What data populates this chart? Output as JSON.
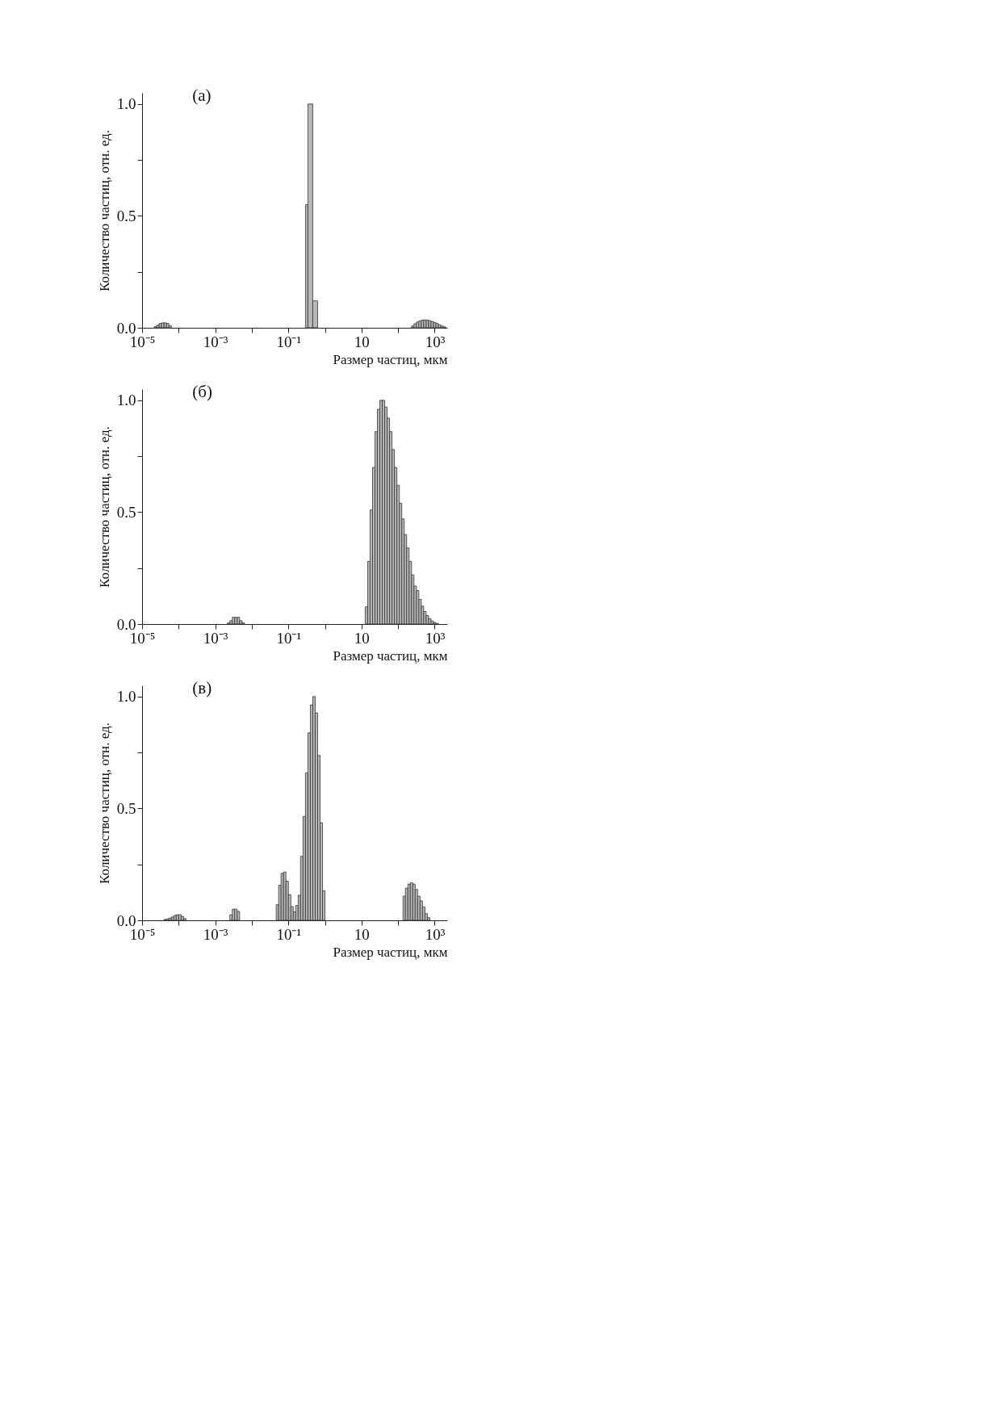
{
  "chart_data": [
    {
      "type": "histogram",
      "title": "(а)",
      "xlabel": "Размер частиц, мкм",
      "ylabel": "Количество частиц, отн. ед.",
      "log": "x",
      "color": "#b8b8b8",
      "xlim": [
        1e-05,
        2200
      ],
      "ylim": [
        0,
        1.05
      ],
      "xticks": [
        {
          "value": 1e-05,
          "label": "10⁻⁵"
        },
        {
          "value": 0.0001,
          "label": null
        },
        {
          "value": 0.001,
          "label": "10⁻³"
        },
        {
          "value": 0.01,
          "label": null
        },
        {
          "value": 0.1,
          "label": "10⁻¹"
        },
        {
          "value": 1,
          "label": null
        },
        {
          "value": 10,
          "label": "10"
        },
        {
          "value": 100,
          "label": null
        },
        {
          "value": 1000,
          "label": "10³"
        }
      ],
      "yticks": [
        {
          "value": 0,
          "label": "0.0"
        },
        {
          "value": 0.25,
          "label": null
        },
        {
          "value": 0.5,
          "label": "0.5"
        },
        {
          "value": 0.75,
          "label": null
        },
        {
          "value": 1,
          "label": "1.0"
        }
      ],
      "bins": [
        2.15e-05,
        2.51e-05,
        2.93e-05,
        3.41e-05,
        3.98e-05,
        4.64e-05,
        5.41e-05,
        6.31e-05,
        0.293,
        0.341,
        0.464,
        0.631,
        233,
        271,
        316,
        369,
        430,
        501,
        584,
        681,
        794,
        926,
        1080,
        1260,
        1470,
        1710,
        2000
      ],
      "values": [
        0.005,
        0.012,
        0.02,
        0.022,
        0.022,
        0.02,
        0.01,
        0,
        0.55,
        1.0,
        0.12,
        0,
        0.008,
        0.018,
        0.026,
        0.031,
        0.034,
        0.035,
        0.034,
        0.032,
        0.028,
        0.024,
        0.019,
        0.013,
        0.008,
        0.004
      ]
    },
    {
      "type": "histogram",
      "title": "(б)",
      "xlabel": "Размер частиц, мкм",
      "ylabel": "Количество частиц, отн. ед.",
      "log": "x",
      "color": "#b8b8b8",
      "xlim": [
        1e-05,
        2200
      ],
      "ylim": [
        0,
        1.05
      ],
      "xticks": [
        {
          "value": 1e-05,
          "label": "10⁻⁵"
        },
        {
          "value": 0.0001,
          "label": null
        },
        {
          "value": 0.001,
          "label": "10⁻³"
        },
        {
          "value": 0.01,
          "label": null
        },
        {
          "value": 0.1,
          "label": "10⁻¹"
        },
        {
          "value": 1,
          "label": null
        },
        {
          "value": 10,
          "label": "10"
        },
        {
          "value": 100,
          "label": null
        },
        {
          "value": 1000,
          "label": "10³"
        }
      ],
      "yticks": [
        {
          "value": 0,
          "label": "0.0"
        },
        {
          "value": 0.25,
          "label": null
        },
        {
          "value": 0.5,
          "label": "0.5"
        },
        {
          "value": 0.75,
          "label": null
        },
        {
          "value": 1,
          "label": "1.0"
        }
      ],
      "bins": [
        0.00215,
        0.00251,
        0.00293,
        0.00341,
        0.00398,
        0.00464,
        0.00541,
        0.00631,
        12.6,
        14.7,
        17.1,
        20.0,
        23.3,
        27.1,
        31.6,
        36.9,
        43.0,
        50.1,
        58.4,
        68.1,
        79.4,
        92.6,
        108,
        126,
        147,
        171,
        200,
        233,
        271,
        316,
        369,
        430,
        501,
        584,
        681,
        794,
        926,
        1080,
        1260
      ],
      "values": [
        0.005,
        0.015,
        0.03,
        0.03,
        0.03,
        0.015,
        0.005,
        0,
        0.077,
        0.28,
        0.51,
        0.7,
        0.86,
        0.96,
        1.0,
        1.0,
        0.97,
        0.92,
        0.86,
        0.78,
        0.7,
        0.62,
        0.54,
        0.47,
        0.4,
        0.34,
        0.28,
        0.22,
        0.17,
        0.15,
        0.11,
        0.08,
        0.056,
        0.038,
        0.024,
        0.014,
        0.007,
        0.003
      ]
    },
    {
      "type": "histogram",
      "title": "(в)",
      "xlabel": "Размер частиц, мкм",
      "ylabel": "Количество частиц, отн. ед.",
      "log": "x",
      "color": "#b8b8b8",
      "xlim": [
        1e-05,
        2200
      ],
      "ylim": [
        0,
        1.05
      ],
      "xticks": [
        {
          "value": 1e-05,
          "label": "10⁻⁵"
        },
        {
          "value": 0.0001,
          "label": null
        },
        {
          "value": 0.001,
          "label": "10⁻³"
        },
        {
          "value": 0.01,
          "label": null
        },
        {
          "value": 0.1,
          "label": "10⁻¹"
        },
        {
          "value": 1,
          "label": null
        },
        {
          "value": 10,
          "label": "10"
        },
        {
          "value": 100,
          "label": null
        },
        {
          "value": 1000,
          "label": "10³"
        }
      ],
      "yticks": [
        {
          "value": 0,
          "label": "0.0"
        },
        {
          "value": 0.25,
          "label": null
        },
        {
          "value": 0.5,
          "label": "0.5"
        },
        {
          "value": 0.75,
          "label": null
        },
        {
          "value": 1,
          "label": "1.0"
        }
      ],
      "bins": [
        3.98e-05,
        4.64e-05,
        5.41e-05,
        6.31e-05,
        7.36e-05,
        8.58e-05,
        0.0001,
        0.000117,
        0.000136,
        0.000158,
        0.00251,
        0.00293,
        0.00341,
        0.00398,
        0.00464,
        0.0464,
        0.0541,
        0.0631,
        0.0736,
        0.0858,
        0.1,
        0.117,
        0.136,
        0.158,
        0.185,
        0.215,
        0.251,
        0.293,
        0.341,
        0.398,
        0.464,
        0.541,
        0.631,
        0.736,
        0.858,
        1.0,
        136,
        158,
        185,
        215,
        251,
        293,
        341,
        398,
        464,
        541,
        631,
        736
      ],
      "values": [
        0.004,
        0.006,
        0.01,
        0.015,
        0.022,
        0.025,
        0.025,
        0.018,
        0.008,
        0,
        0.025,
        0.05,
        0.05,
        0.04,
        0,
        0.07,
        0.157,
        0.21,
        0.216,
        0.175,
        0.115,
        0.061,
        0.038,
        0.066,
        0.112,
        0.286,
        0.464,
        0.659,
        0.838,
        0.963,
        1.0,
        0.927,
        0.737,
        0.436,
        0.132,
        0,
        0.108,
        0.144,
        0.162,
        0.168,
        0.162,
        0.138,
        0.108,
        0.087,
        0.06,
        0.03,
        0.012
      ]
    }
  ]
}
